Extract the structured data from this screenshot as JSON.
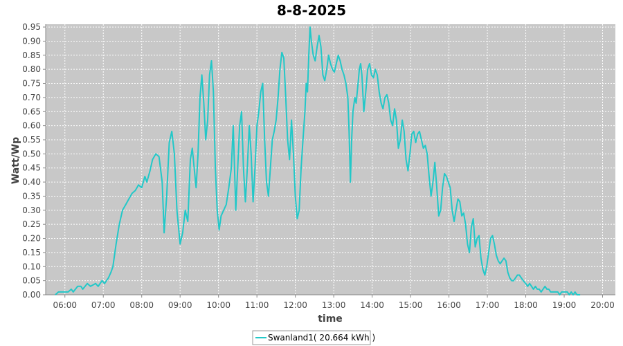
{
  "chart_data": {
    "type": "line",
    "title": "8-8-2025",
    "xlabel": "time",
    "ylabel": "Watt/Wp",
    "xlim": [
      "05:30",
      "20:20"
    ],
    "ylim": [
      0,
      0.96
    ],
    "x_ticks": [
      "06:00",
      "07:00",
      "08:00",
      "09:00",
      "10:00",
      "11:00",
      "12:00",
      "13:00",
      "14:00",
      "15:00",
      "16:00",
      "17:00",
      "18:00",
      "19:00",
      "20:00"
    ],
    "y_ticks": [
      0.0,
      0.05,
      0.1,
      0.15,
      0.2,
      0.25,
      0.3,
      0.35,
      0.4,
      0.45,
      0.5,
      0.55,
      0.6,
      0.65,
      0.7,
      0.75,
      0.8,
      0.85,
      0.9,
      0.95
    ],
    "grid": true,
    "legend_position": "bottom-center",
    "colors": {
      "series": "#22c8c8",
      "plot_background": "#c8c8c8",
      "grid": "#ffffff"
    },
    "series": [
      {
        "name": "Swanland1( 20.664 kWh )",
        "points": [
          [
            "05:45",
            0.0
          ],
          [
            "05:50",
            0.01
          ],
          [
            "06:00",
            0.01
          ],
          [
            "06:05",
            0.01
          ],
          [
            "06:10",
            0.02
          ],
          [
            "06:13",
            0.01
          ],
          [
            "06:20",
            0.03
          ],
          [
            "06:25",
            0.03
          ],
          [
            "06:28",
            0.02
          ],
          [
            "06:35",
            0.04
          ],
          [
            "06:40",
            0.03
          ],
          [
            "06:48",
            0.04
          ],
          [
            "06:52",
            0.03
          ],
          [
            "06:58",
            0.05
          ],
          [
            "07:02",
            0.04
          ],
          [
            "07:08",
            0.06
          ],
          [
            "07:12",
            0.08
          ],
          [
            "07:15",
            0.1
          ],
          [
            "07:20",
            0.18
          ],
          [
            "07:25",
            0.25
          ],
          [
            "07:30",
            0.3
          ],
          [
            "07:35",
            0.32
          ],
          [
            "07:40",
            0.34
          ],
          [
            "07:45",
            0.36
          ],
          [
            "07:50",
            0.37
          ],
          [
            "07:55",
            0.39
          ],
          [
            "08:00",
            0.38
          ],
          [
            "08:05",
            0.42
          ],
          [
            "08:08",
            0.4
          ],
          [
            "08:13",
            0.44
          ],
          [
            "08:17",
            0.48
          ],
          [
            "08:22",
            0.5
          ],
          [
            "08:27",
            0.49
          ],
          [
            "08:32",
            0.4
          ],
          [
            "08:35",
            0.22
          ],
          [
            "08:39",
            0.35
          ],
          [
            "08:43",
            0.54
          ],
          [
            "08:47",
            0.58
          ],
          [
            "08:51",
            0.5
          ],
          [
            "08:55",
            0.3
          ],
          [
            "09:00",
            0.18
          ],
          [
            "09:04",
            0.22
          ],
          [
            "09:08",
            0.3
          ],
          [
            "09:12",
            0.26
          ],
          [
            "09:16",
            0.48
          ],
          [
            "09:19",
            0.52
          ],
          [
            "09:22",
            0.45
          ],
          [
            "09:25",
            0.38
          ],
          [
            "09:28",
            0.5
          ],
          [
            "09:31",
            0.7
          ],
          [
            "09:34",
            0.78
          ],
          [
            "09:37",
            0.68
          ],
          [
            "09:40",
            0.55
          ],
          [
            "09:43",
            0.62
          ],
          [
            "09:46",
            0.78
          ],
          [
            "09:49",
            0.83
          ],
          [
            "09:52",
            0.72
          ],
          [
            "09:55",
            0.45
          ],
          [
            "09:58",
            0.3
          ],
          [
            "10:01",
            0.23
          ],
          [
            "10:04",
            0.28
          ],
          [
            "10:08",
            0.3
          ],
          [
            "10:12",
            0.32
          ],
          [
            "10:16",
            0.38
          ],
          [
            "10:20",
            0.45
          ],
          [
            "10:23",
            0.6
          ],
          [
            "10:25",
            0.45
          ],
          [
            "10:27",
            0.3
          ],
          [
            "10:30",
            0.45
          ],
          [
            "10:33",
            0.6
          ],
          [
            "10:36",
            0.65
          ],
          [
            "10:39",
            0.45
          ],
          [
            "10:42",
            0.33
          ],
          [
            "10:45",
            0.45
          ],
          [
            "10:48",
            0.6
          ],
          [
            "10:51",
            0.5
          ],
          [
            "10:54",
            0.33
          ],
          [
            "10:57",
            0.45
          ],
          [
            "11:00",
            0.6
          ],
          [
            "11:03",
            0.65
          ],
          [
            "11:06",
            0.72
          ],
          [
            "11:09",
            0.75
          ],
          [
            "11:12",
            0.55
          ],
          [
            "11:15",
            0.4
          ],
          [
            "11:18",
            0.35
          ],
          [
            "11:21",
            0.45
          ],
          [
            "11:24",
            0.55
          ],
          [
            "11:27",
            0.58
          ],
          [
            "11:30",
            0.62
          ],
          [
            "11:33",
            0.7
          ],
          [
            "11:36",
            0.8
          ],
          [
            "11:39",
            0.86
          ],
          [
            "11:42",
            0.84
          ],
          [
            "11:45",
            0.7
          ],
          [
            "11:48",
            0.55
          ],
          [
            "11:51",
            0.48
          ],
          [
            "11:54",
            0.62
          ],
          [
            "11:57",
            0.5
          ],
          [
            "12:00",
            0.35
          ],
          [
            "12:03",
            0.27
          ],
          [
            "12:06",
            0.3
          ],
          [
            "12:09",
            0.45
          ],
          [
            "12:12",
            0.55
          ],
          [
            "12:15",
            0.65
          ],
          [
            "12:17",
            0.75
          ],
          [
            "12:19",
            0.72
          ],
          [
            "12:21",
            0.85
          ],
          [
            "12:23",
            0.95
          ],
          [
            "12:25",
            0.9
          ],
          [
            "12:28",
            0.85
          ],
          [
            "12:31",
            0.83
          ],
          [
            "12:34",
            0.88
          ],
          [
            "12:37",
            0.92
          ],
          [
            "12:40",
            0.88
          ],
          [
            "12:43",
            0.78
          ],
          [
            "12:46",
            0.76
          ],
          [
            "12:49",
            0.8
          ],
          [
            "12:52",
            0.85
          ],
          [
            "12:55",
            0.82
          ],
          [
            "12:58",
            0.8
          ],
          [
            "13:01",
            0.79
          ],
          [
            "13:04",
            0.82
          ],
          [
            "13:07",
            0.85
          ],
          [
            "13:10",
            0.83
          ],
          [
            "13:13",
            0.8
          ],
          [
            "13:16",
            0.78
          ],
          [
            "13:19",
            0.75
          ],
          [
            "13:22",
            0.7
          ],
          [
            "13:24",
            0.58
          ],
          [
            "13:26",
            0.4
          ],
          [
            "13:28",
            0.55
          ],
          [
            "13:30",
            0.65
          ],
          [
            "13:33",
            0.7
          ],
          [
            "13:35",
            0.68
          ],
          [
            "13:38",
            0.75
          ],
          [
            "13:40",
            0.8
          ],
          [
            "13:42",
            0.82
          ],
          [
            "13:44",
            0.78
          ],
          [
            "13:47",
            0.65
          ],
          [
            "13:50",
            0.72
          ],
          [
            "13:53",
            0.8
          ],
          [
            "13:56",
            0.82
          ],
          [
            "13:59",
            0.78
          ],
          [
            "14:02",
            0.77
          ],
          [
            "14:05",
            0.8
          ],
          [
            "14:08",
            0.78
          ],
          [
            "14:11",
            0.72
          ],
          [
            "14:14",
            0.68
          ],
          [
            "14:17",
            0.66
          ],
          [
            "14:20",
            0.7
          ],
          [
            "14:23",
            0.71
          ],
          [
            "14:26",
            0.68
          ],
          [
            "14:29",
            0.62
          ],
          [
            "14:32",
            0.6
          ],
          [
            "14:35",
            0.66
          ],
          [
            "14:38",
            0.62
          ],
          [
            "14:41",
            0.52
          ],
          [
            "14:44",
            0.55
          ],
          [
            "14:47",
            0.62
          ],
          [
            "14:50",
            0.58
          ],
          [
            "14:53",
            0.48
          ],
          [
            "14:56",
            0.44
          ],
          [
            "14:59",
            0.5
          ],
          [
            "15:02",
            0.57
          ],
          [
            "15:05",
            0.58
          ],
          [
            "15:08",
            0.54
          ],
          [
            "15:11",
            0.57
          ],
          [
            "15:14",
            0.58
          ],
          [
            "15:17",
            0.55
          ],
          [
            "15:20",
            0.52
          ],
          [
            "15:23",
            0.53
          ],
          [
            "15:26",
            0.5
          ],
          [
            "15:29",
            0.42
          ],
          [
            "15:32",
            0.35
          ],
          [
            "15:35",
            0.4
          ],
          [
            "15:38",
            0.47
          ],
          [
            "15:41",
            0.38
          ],
          [
            "15:44",
            0.28
          ],
          [
            "15:47",
            0.3
          ],
          [
            "15:50",
            0.38
          ],
          [
            "15:53",
            0.43
          ],
          [
            "15:56",
            0.42
          ],
          [
            "15:59",
            0.4
          ],
          [
            "16:02",
            0.38
          ],
          [
            "16:05",
            0.3
          ],
          [
            "16:08",
            0.26
          ],
          [
            "16:11",
            0.3
          ],
          [
            "16:14",
            0.34
          ],
          [
            "16:17",
            0.33
          ],
          [
            "16:20",
            0.28
          ],
          [
            "16:23",
            0.29
          ],
          [
            "16:26",
            0.25
          ],
          [
            "16:29",
            0.18
          ],
          [
            "16:32",
            0.15
          ],
          [
            "16:35",
            0.24
          ],
          [
            "16:38",
            0.27
          ],
          [
            "16:41",
            0.17
          ],
          [
            "16:44",
            0.2
          ],
          [
            "16:47",
            0.21
          ],
          [
            "16:50",
            0.13
          ],
          [
            "16:53",
            0.09
          ],
          [
            "16:56",
            0.07
          ],
          [
            "16:59",
            0.1
          ],
          [
            "17:02",
            0.15
          ],
          [
            "17:05",
            0.2
          ],
          [
            "17:08",
            0.21
          ],
          [
            "17:11",
            0.18
          ],
          [
            "17:14",
            0.14
          ],
          [
            "17:17",
            0.12
          ],
          [
            "17:20",
            0.11
          ],
          [
            "17:23",
            0.12
          ],
          [
            "17:26",
            0.13
          ],
          [
            "17:29",
            0.12
          ],
          [
            "17:32",
            0.08
          ],
          [
            "17:35",
            0.06
          ],
          [
            "17:38",
            0.05
          ],
          [
            "17:41",
            0.05
          ],
          [
            "17:44",
            0.06
          ],
          [
            "17:47",
            0.07
          ],
          [
            "17:50",
            0.07
          ],
          [
            "17:53",
            0.06
          ],
          [
            "17:56",
            0.05
          ],
          [
            "18:00",
            0.04
          ],
          [
            "18:03",
            0.03
          ],
          [
            "18:06",
            0.04
          ],
          [
            "18:09",
            0.03
          ],
          [
            "18:12",
            0.02
          ],
          [
            "18:15",
            0.03
          ],
          [
            "18:18",
            0.02
          ],
          [
            "18:21",
            0.02
          ],
          [
            "18:24",
            0.01
          ],
          [
            "18:27",
            0.02
          ],
          [
            "18:30",
            0.03
          ],
          [
            "18:33",
            0.02
          ],
          [
            "18:36",
            0.02
          ],
          [
            "18:39",
            0.01
          ],
          [
            "18:45",
            0.01
          ],
          [
            "18:50",
            0.01
          ],
          [
            "18:53",
            0.0
          ],
          [
            "18:56",
            0.01
          ],
          [
            "19:00",
            0.01
          ],
          [
            "19:05",
            0.01
          ],
          [
            "19:08",
            0.0
          ],
          [
            "19:11",
            0.01
          ],
          [
            "19:14",
            0.0
          ],
          [
            "19:17",
            0.01
          ],
          [
            "19:20",
            0.0
          ],
          [
            "19:25",
            0.0
          ]
        ]
      }
    ]
  }
}
